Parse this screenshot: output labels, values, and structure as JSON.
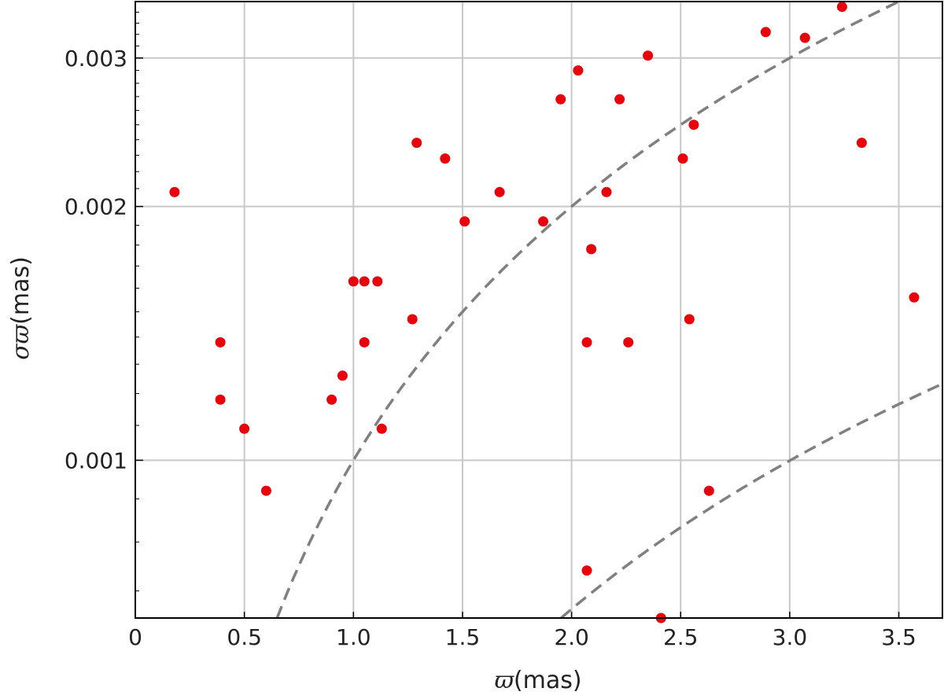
{
  "chart_data": {
    "type": "scatter",
    "title": "",
    "xlabel": {
      "symbol": "ϖ",
      "unit": "(mas)"
    },
    "ylabel": {
      "symbol": "σϖ",
      "unit": "(mas)"
    },
    "xlim": [
      0,
      3.7
    ],
    "ylim": [
      0.00065,
      0.0035
    ],
    "yscale": "log",
    "grid": true,
    "xticks": [
      "0",
      "0.5",
      "1.0",
      "1.5",
      "2.0",
      "2.5",
      "3.0",
      "3.5"
    ],
    "xtick_values": [
      0,
      0.5,
      1.0,
      1.5,
      2.0,
      2.5,
      3.0,
      3.5
    ],
    "yticks": [
      "0.001",
      "0.002",
      "0.003"
    ],
    "ytick_values": [
      0.001,
      0.002,
      0.003
    ],
    "marker_color": "#e8000b",
    "curve_color": "#808080",
    "curves": [
      {
        "relation": "y = x / 3000",
        "k": 0.000333
      },
      {
        "relation": "y = x / 1000",
        "k": 0.001
      }
    ],
    "points": [
      [
        0.18,
        0.00208
      ],
      [
        0.39,
        0.00138
      ],
      [
        0.39,
        0.00118
      ],
      [
        0.5,
        0.00109
      ],
      [
        0.6,
        0.00092
      ],
      [
        0.9,
        0.00118
      ],
      [
        0.95,
        0.00126
      ],
      [
        1.0,
        0.00163
      ],
      [
        1.05,
        0.00163
      ],
      [
        1.05,
        0.00138
      ],
      [
        1.11,
        0.00163
      ],
      [
        1.13,
        0.00109
      ],
      [
        1.27,
        0.00147
      ],
      [
        1.29,
        0.00238
      ],
      [
        1.42,
        0.00228
      ],
      [
        1.51,
        0.00192
      ],
      [
        1.67,
        0.00208
      ],
      [
        1.87,
        0.00192
      ],
      [
        1.95,
        0.00268
      ],
      [
        2.03,
        0.0029
      ],
      [
        2.07,
        0.00138
      ],
      [
        2.07,
        0.00074
      ],
      [
        2.09,
        0.00178
      ],
      [
        2.16,
        0.00208
      ],
      [
        2.22,
        0.00268
      ],
      [
        2.26,
        0.00138
      ],
      [
        2.35,
        0.00302
      ],
      [
        2.41,
        0.00065
      ],
      [
        2.51,
        0.00228
      ],
      [
        2.54,
        0.00147
      ],
      [
        2.56,
        0.0025
      ],
      [
        2.63,
        0.00092
      ],
      [
        2.89,
        0.00322
      ],
      [
        3.07,
        0.00317
      ],
      [
        3.24,
        0.00345
      ],
      [
        3.33,
        0.00238
      ],
      [
        3.57,
        0.00156
      ]
    ]
  }
}
